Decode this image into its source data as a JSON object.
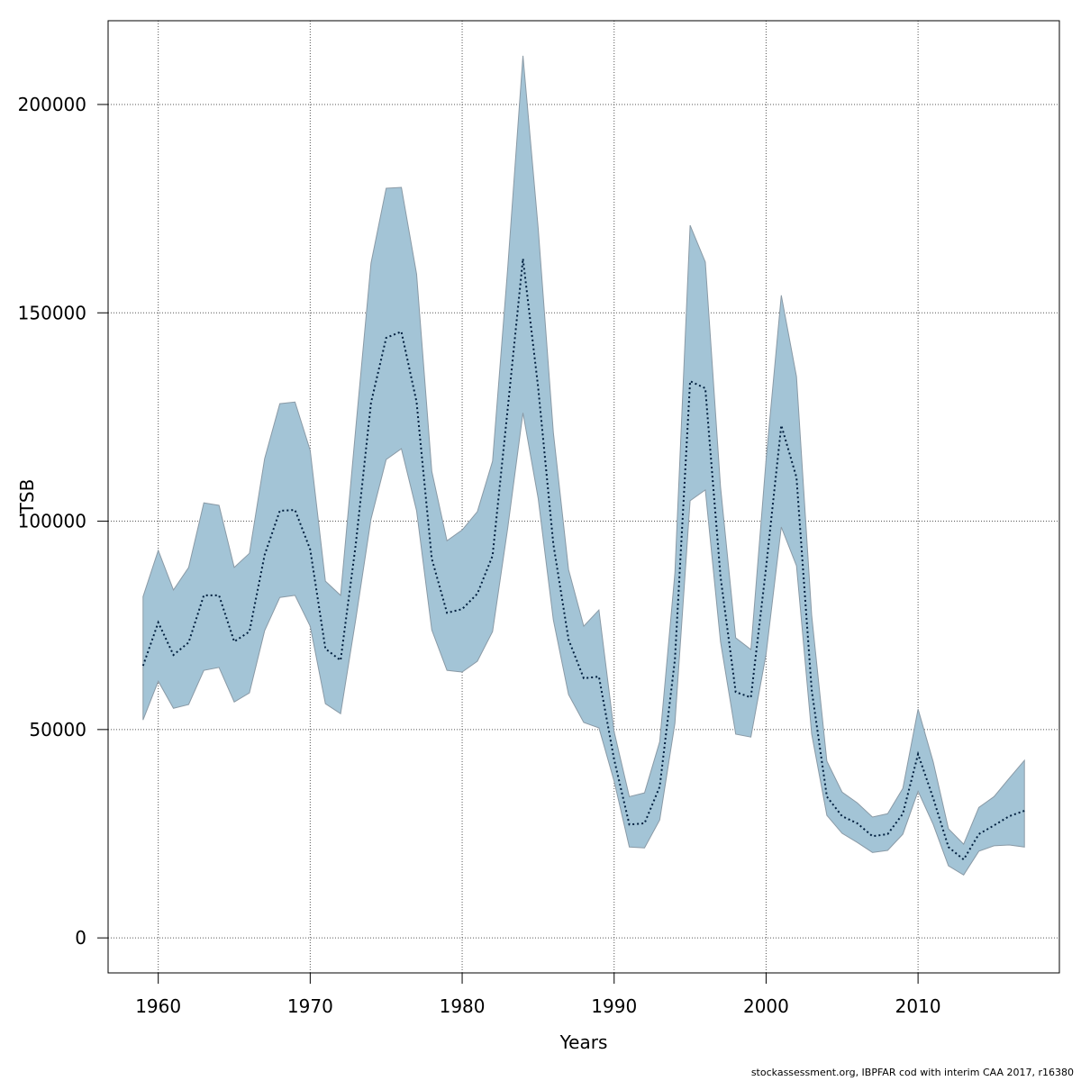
{
  "chart_data": {
    "type": "line",
    "xlabel": "Years",
    "ylabel": "TSB",
    "footnote": "stockassessment.org, IBPFAR cod with interim CAA 2017, r16380",
    "x": [
      1959,
      1960,
      1961,
      1962,
      1963,
      1964,
      1965,
      1966,
      1967,
      1968,
      1969,
      1970,
      1971,
      1972,
      1973,
      1974,
      1975,
      1976,
      1977,
      1978,
      1979,
      1980,
      1981,
      1982,
      1983,
      1984,
      1985,
      1986,
      1987,
      1988,
      1989,
      1990,
      1991,
      1992,
      1993,
      1994,
      1995,
      1996,
      1997,
      1998,
      1999,
      2000,
      2001,
      2002,
      2003,
      2004,
      2005,
      2006,
      2007,
      2008,
      2009,
      2010,
      2011,
      2012,
      2013,
      2014,
      2015,
      2016,
      2017
    ],
    "values": [
      65300,
      75700,
      67900,
      70900,
      82200,
      82200,
      71100,
      73500,
      91900,
      102500,
      102700,
      93200,
      69400,
      66600,
      94500,
      128400,
      144000,
      145500,
      128600,
      91000,
      78000,
      78900,
      82600,
      91700,
      127100,
      163000,
      132100,
      94500,
      71600,
      62300,
      62700,
      42800,
      27200,
      27500,
      36300,
      66800,
      133600,
      131900,
      86700,
      59000,
      57700,
      88900,
      123000,
      110500,
      59500,
      33900,
      29200,
      27500,
      24400,
      24900,
      29800,
      44100,
      33500,
      21800,
      18800,
      24900,
      27000,
      29200,
      30500
    ],
    "upper": [
      81900,
      93000,
      83500,
      88900,
      104400,
      103800,
      88900,
      92300,
      115000,
      128200,
      128600,
      117000,
      85600,
      82200,
      122400,
      161900,
      179900,
      180100,
      159300,
      112000,
      95300,
      97900,
      102300,
      114400,
      160900,
      211700,
      170400,
      121300,
      88400,
      74800,
      78700,
      49500,
      33900,
      34800,
      47100,
      87600,
      171000,
      162200,
      108300,
      72000,
      69200,
      114800,
      154200,
      134700,
      77400,
      42400,
      35000,
      32400,
      29000,
      29800,
      35900,
      54900,
      42200,
      26200,
      22500,
      31300,
      33900,
      38300,
      42600
    ],
    "lower": [
      52300,
      61600,
      55100,
      56000,
      64200,
      64900,
      56600,
      58800,
      73700,
      81700,
      82200,
      74800,
      56200,
      53800,
      76500,
      100500,
      114800,
      117400,
      102500,
      73900,
      64200,
      63800,
      66400,
      73500,
      98400,
      126000,
      105500,
      76300,
      58400,
      51700,
      50400,
      37600,
      21800,
      21600,
      28300,
      51500,
      104900,
      107500,
      71100,
      48900,
      48200,
      68100,
      98600,
      89300,
      48900,
      29400,
      25100,
      22900,
      20500,
      21000,
      24900,
      35200,
      27200,
      17300,
      15100,
      20800,
      22100,
      22300,
      21800
    ],
    "line_color": "#001f3f",
    "band_color": "#a3c4d6",
    "xlim": [
      1956.7,
      2019.3
    ],
    "ylim": [
      -8400,
      220100
    ],
    "xticks": [
      1960,
      1970,
      1980,
      1990,
      2000,
      2010
    ],
    "yticks": [
      0,
      50000,
      100000,
      150000,
      200000
    ],
    "grid": true
  }
}
